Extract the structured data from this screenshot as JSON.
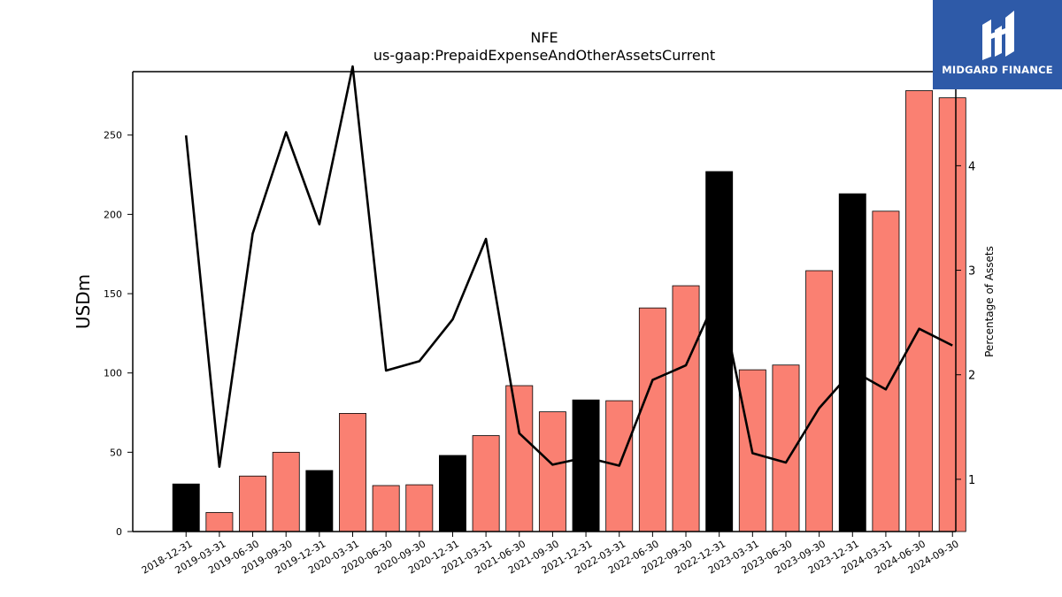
{
  "chart_data": {
    "type": "bar",
    "title": "NFE",
    "subtitle": "us-gaap:PrepaidExpenseAndOtherAssetsCurrent",
    "ylabel": "USDm",
    "y2label": "Percentage of Assets",
    "ylim": [
      0,
      290
    ],
    "y2lim": [
      0.5,
      4.9
    ],
    "yticks": [
      0,
      50,
      100,
      150,
      200,
      250
    ],
    "y2ticks": [
      1,
      2,
      3,
      4
    ],
    "categories": [
      "2018-12-31",
      "2019-03-31",
      "2019-06-30",
      "2019-09-30",
      "2019-12-31",
      "2020-03-31",
      "2020-06-30",
      "2020-09-30",
      "2020-12-31",
      "2021-03-31",
      "2021-06-30",
      "2021-09-30",
      "2021-12-31",
      "2022-03-31",
      "2022-06-30",
      "2022-09-30",
      "2022-12-31",
      "2023-03-31",
      "2023-06-30",
      "2023-09-30",
      "2023-12-31",
      "2024-03-31",
      "2024-06-30",
      "2024-09-30"
    ],
    "series": [
      {
        "type": "bar",
        "values": [
          30,
          12,
          35,
          50,
          38.5,
          74.5,
          29,
          29.5,
          48,
          60.5,
          92,
          75.5,
          83,
          82.5,
          141,
          155,
          227,
          102,
          105,
          164.5,
          213,
          202,
          278,
          273.5
        ],
        "colors": [
          "#000000",
          "#fa8072",
          "#fa8072",
          "#fa8072",
          "#000000",
          "#fa8072",
          "#fa8072",
          "#fa8072",
          "#000000",
          "#fa8072",
          "#fa8072",
          "#fa8072",
          "#000000",
          "#fa8072",
          "#fa8072",
          "#fa8072",
          "#000000",
          "#fa8072",
          "#fa8072",
          "#fa8072",
          "#000000",
          "#fa8072",
          "#fa8072",
          "#fa8072"
        ]
      },
      {
        "type": "line",
        "axis": "right",
        "color": "#000000",
        "values": [
          4.29,
          1.12,
          3.35,
          4.32,
          3.44,
          4.95,
          2.04,
          2.13,
          2.53,
          3.3,
          1.44,
          1.14,
          1.21,
          1.13,
          1.95,
          2.09,
          2.8,
          1.25,
          1.16,
          1.68,
          2.04,
          1.86,
          2.44,
          2.28
        ]
      }
    ]
  },
  "logo": {
    "text": "MIDGARD FINANCE",
    "background": "#2e5aa8"
  }
}
